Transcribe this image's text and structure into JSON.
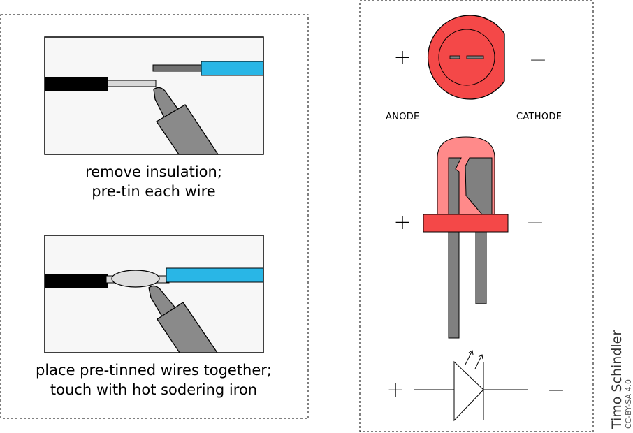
{
  "left_panel": {
    "step1": {
      "lines": [
        "remove insulation;",
        "pre-tin each wire"
      ]
    },
    "step2": {
      "lines": [
        "place pre-tinned wires together;",
        "touch with hot sodering iron"
      ]
    }
  },
  "right_panel": {
    "anode_label": "ANODE",
    "cathode_label": "CATHODE",
    "plus_sign": "+",
    "minus_sign": "—"
  },
  "credit": {
    "author": "Timo Schindler",
    "license": "CC-BY-SA 4.0"
  },
  "colors": {
    "insulation_black": "#000000",
    "insulation_blue": "#29b6e6",
    "bare_wire": "#d8d8d8",
    "solder_blob": "#dedede",
    "iron_gray": "#8a8a8a",
    "led_red": "#f44848",
    "led_pink": "#ff8a8a",
    "leg_gray": "#808080",
    "panel_bg": "#f7f7f7"
  }
}
